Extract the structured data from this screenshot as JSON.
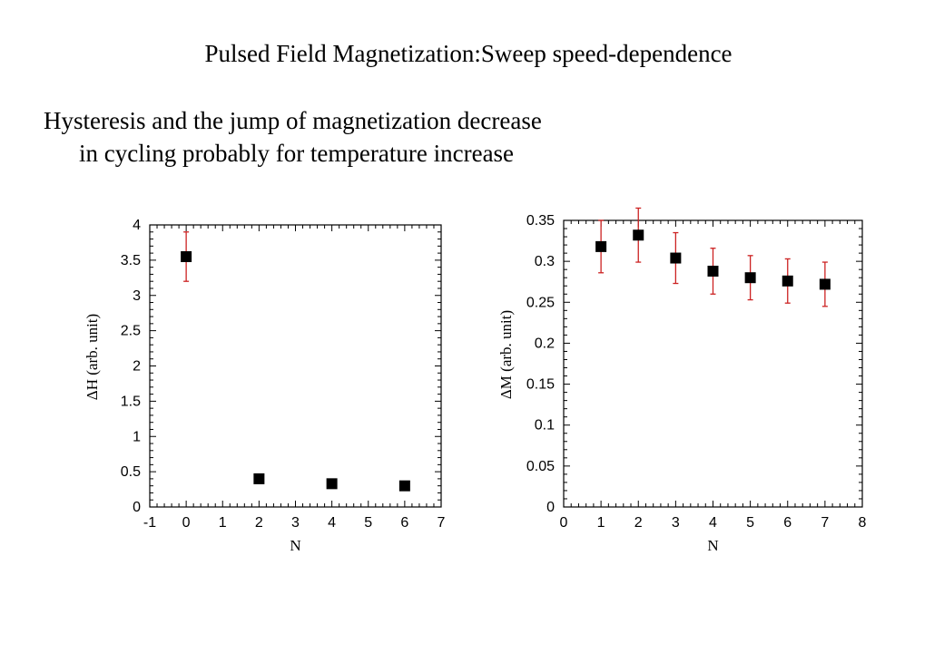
{
  "slide": {
    "title": "Pulsed Field Magnetization:Sweep speed-dependence",
    "lines": [
      "Hysteresis and the jump of magnetization decrease",
      "in cycling probably for temperature increase"
    ]
  },
  "colors": {
    "marker": "#000000",
    "error_bar": "#cc2222",
    "axis": "#000000"
  },
  "chart_data": [
    {
      "type": "scatter",
      "xlabel": "N",
      "ylabel": "ΔH (arb. unit)",
      "xlim": [
        -1,
        7
      ],
      "ylim": [
        0,
        4
      ],
      "xticks": [
        -1,
        0,
        1,
        2,
        3,
        4,
        5,
        6,
        7
      ],
      "yticks": [
        0,
        0.5,
        1,
        1.5,
        2,
        2.5,
        3,
        3.5,
        4
      ],
      "grid": false,
      "series": [
        {
          "x": [
            0,
            2,
            4,
            6
          ],
          "y": [
            3.55,
            0.4,
            0.33,
            0.3
          ],
          "error": [
            0.35,
            0,
            0,
            0
          ]
        }
      ]
    },
    {
      "type": "scatter",
      "xlabel": "N",
      "ylabel": "ΔM (arb. unit)",
      "xlim": [
        0,
        8
      ],
      "ylim": [
        0,
        0.35
      ],
      "xticks": [
        0,
        1,
        2,
        3,
        4,
        5,
        6,
        7,
        8
      ],
      "yticks": [
        0,
        0.05,
        0.1,
        0.15,
        0.2,
        0.25,
        0.3,
        0.35
      ],
      "grid": false,
      "series": [
        {
          "x": [
            1,
            2,
            3,
            4,
            5,
            6,
            7
          ],
          "y": [
            0.318,
            0.332,
            0.304,
            0.288,
            0.28,
            0.276,
            0.272
          ],
          "error": [
            0.032,
            0.033,
            0.031,
            0.028,
            0.027,
            0.027,
            0.027
          ]
        }
      ]
    }
  ]
}
